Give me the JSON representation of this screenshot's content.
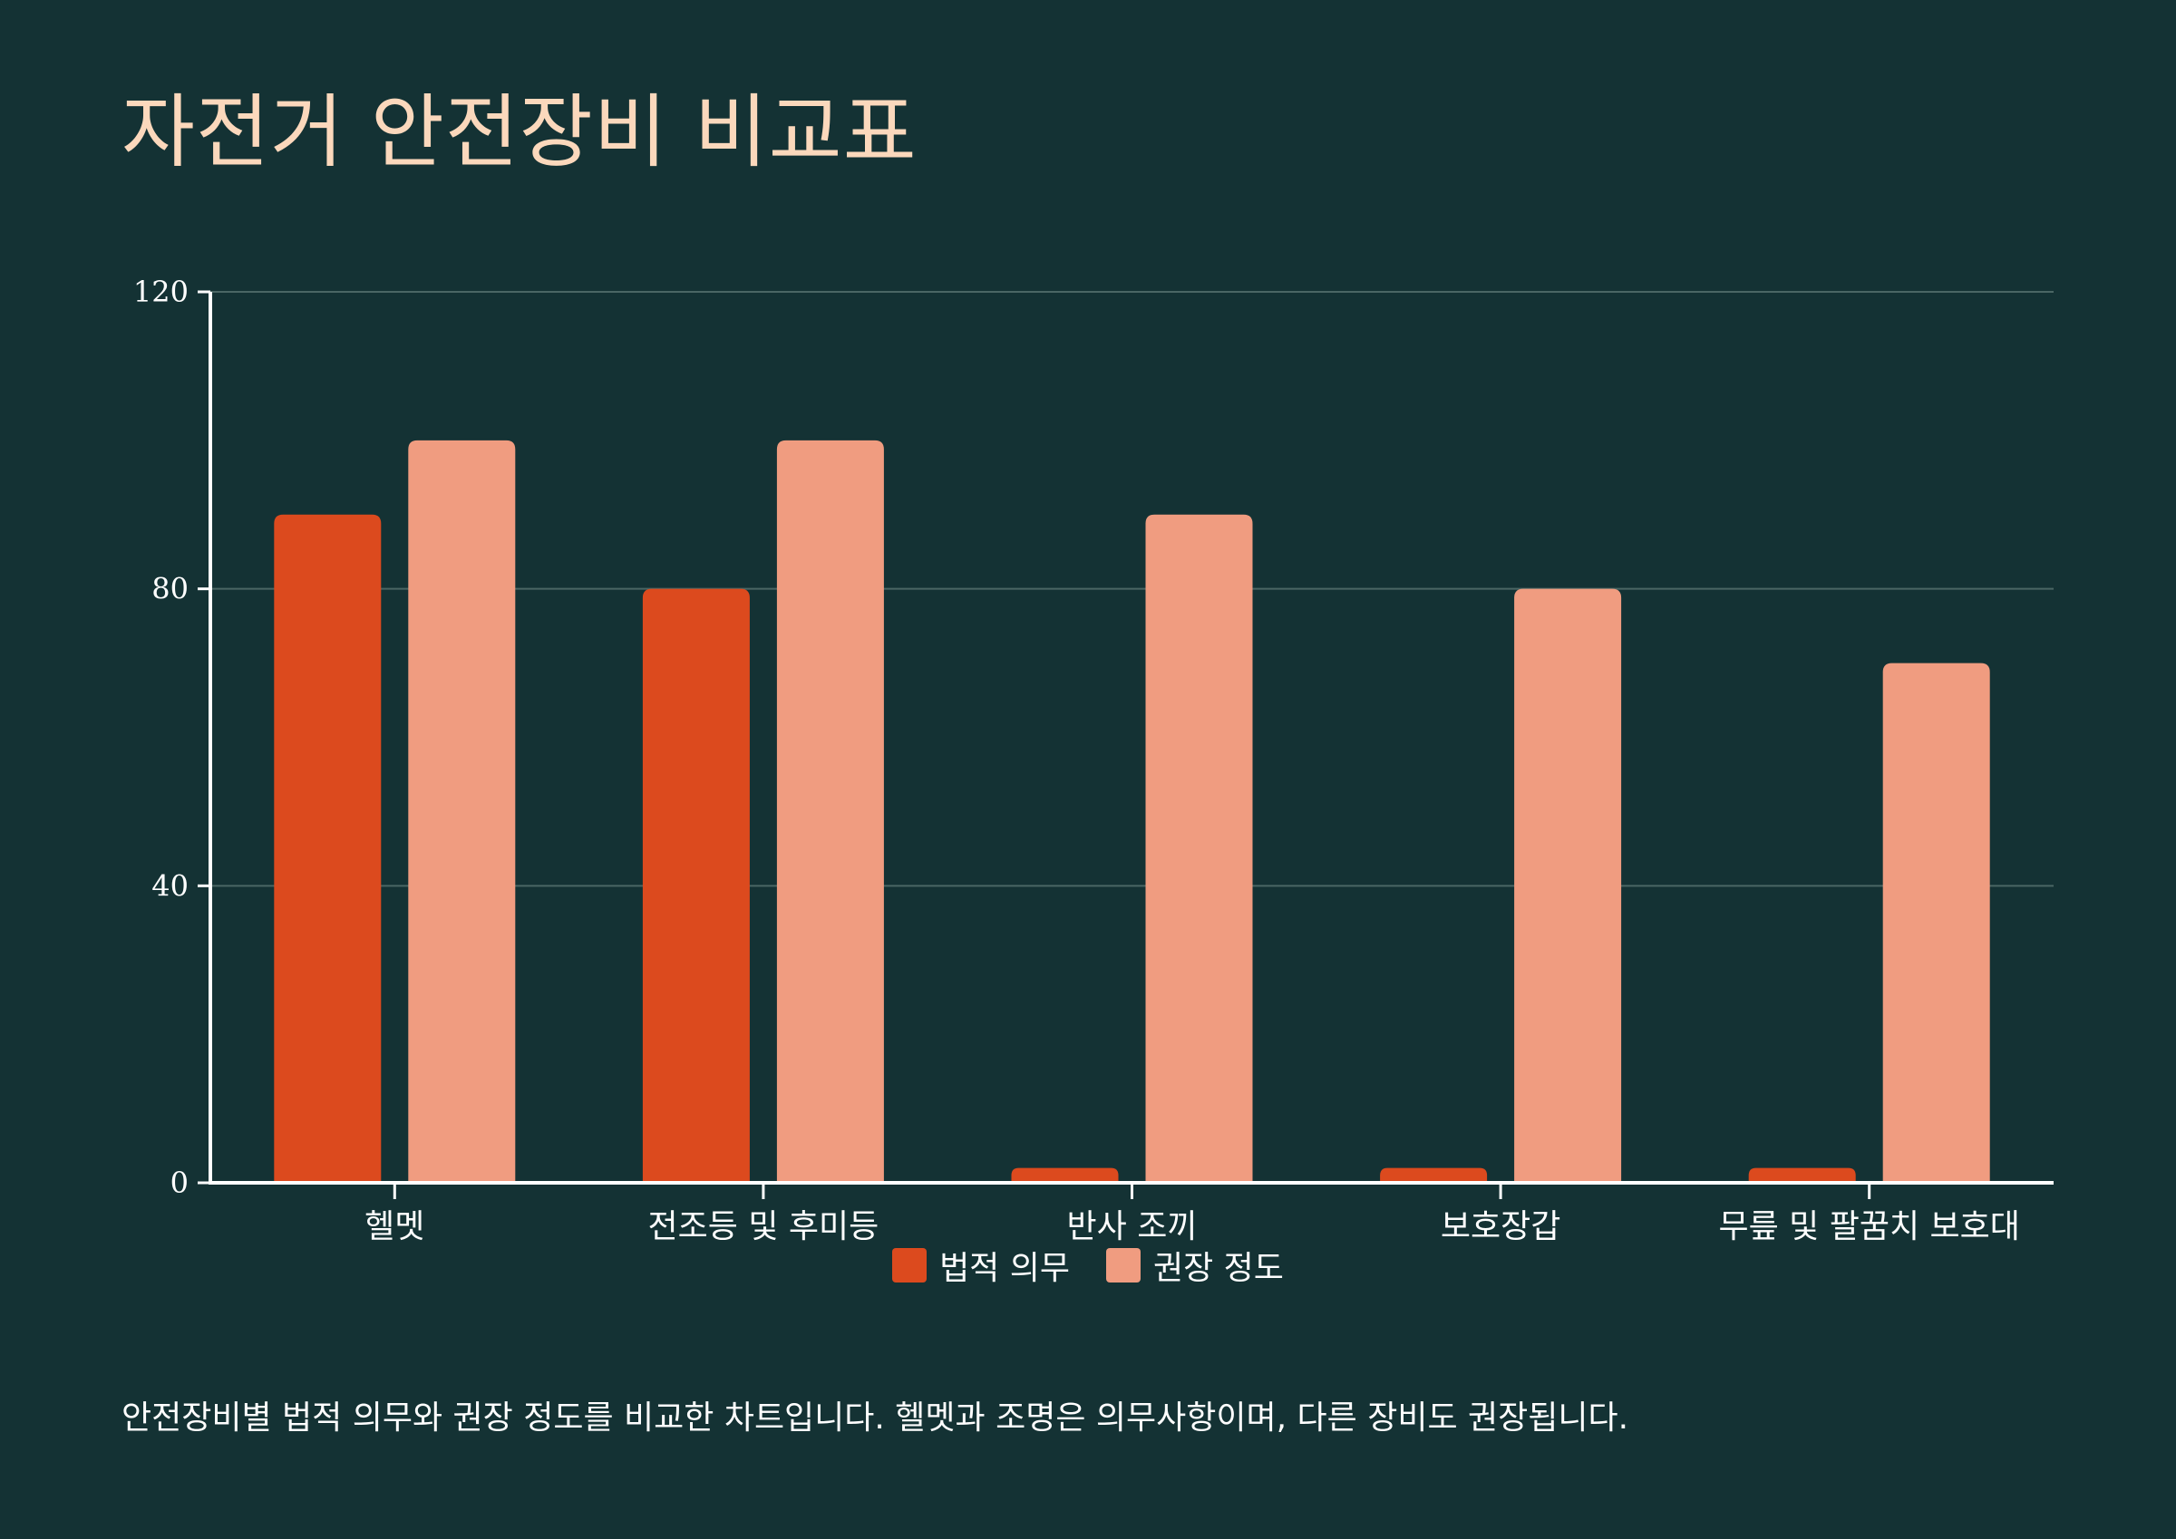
{
  "title": "자전거 안전장비 비교표",
  "caption": "안전장비별 법적 의무와 권장 정도를 비교한 차트입니다. 헬멧과 조명은 의무사항이며, 다른 장비도 권장됩니다.",
  "colors": {
    "background": "#143234",
    "title": "#fbd8bc",
    "series_legal": "#dc4a1e",
    "series_recommended": "#f09c80",
    "grid": "#4a6664",
    "axis": "#ffffff"
  },
  "legend": {
    "items": [
      {
        "label": "법적 의무",
        "color": "#dc4a1e"
      },
      {
        "label": "권장 정도",
        "color": "#f09c80"
      }
    ]
  },
  "chart_data": {
    "type": "bar",
    "categories": [
      "헬멧",
      "전조등 및 후미등",
      "반사 조끼",
      "보호장갑",
      "무릎 및 팔꿈치 보호대"
    ],
    "series": [
      {
        "name": "법적 의무",
        "values": [
          90,
          80,
          2,
          2,
          2
        ]
      },
      {
        "name": "권장 정도",
        "values": [
          100,
          100,
          90,
          80,
          70
        ]
      }
    ],
    "ylim": [
      0,
      120
    ],
    "yticks": [
      "0",
      "40",
      "80",
      "120"
    ],
    "grid": true,
    "legend_position": "bottom-center",
    "xlabel": "",
    "ylabel": ""
  }
}
